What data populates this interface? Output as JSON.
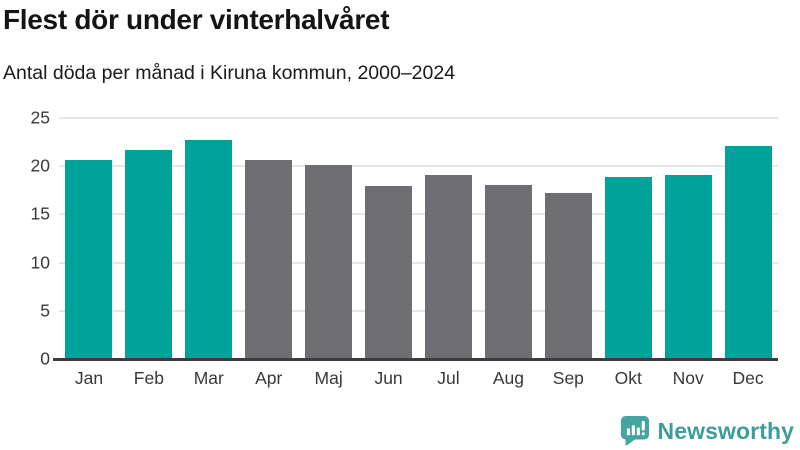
{
  "header": {
    "title": "Flest dör under vinterhalvåret",
    "subtitle": "Antal döda per månad i Kiruna kommun, 2000–2024"
  },
  "chart_data": {
    "type": "bar",
    "title": "Flest dör under vinterhalvåret",
    "subtitle": "Antal döda per månad i Kiruna kommun, 2000–2024",
    "categories": [
      "Jan",
      "Feb",
      "Mar",
      "Apr",
      "Maj",
      "Jun",
      "Jul",
      "Aug",
      "Sep",
      "Okt",
      "Nov",
      "Dec"
    ],
    "values": [
      20.6,
      21.7,
      22.7,
      20.6,
      20.1,
      17.9,
      19.1,
      18.1,
      17.2,
      18.9,
      19.1,
      22.1
    ],
    "bar_colors": [
      "#00a29a",
      "#00a29a",
      "#00a29a",
      "#6d6d72",
      "#6d6d72",
      "#6d6d72",
      "#6d6d72",
      "#6d6d72",
      "#6d6d72",
      "#00a29a",
      "#00a29a",
      "#00a29a"
    ],
    "highlight_color": "#00a29a",
    "base_color": "#6d6d72",
    "xlabel": "",
    "ylabel": "",
    "ylim": [
      0,
      25
    ],
    "yticks": [
      0,
      5,
      10,
      15,
      20,
      25
    ],
    "grid": true,
    "legend": "none"
  },
  "branding": {
    "logo_text": "Newsworthy",
    "logo_text_color": "#3d9e99",
    "logo_icon": "bar-chart-speech-bubble-icon",
    "logo_icon_color": "#45a5a0"
  },
  "colors": {
    "background": "#ffffff",
    "title": "#141414",
    "subtitle": "#1a1a1a",
    "axis_labels": "#383838",
    "gridline": "#e6e6e6",
    "axis_line": "#3c3c3c"
  }
}
